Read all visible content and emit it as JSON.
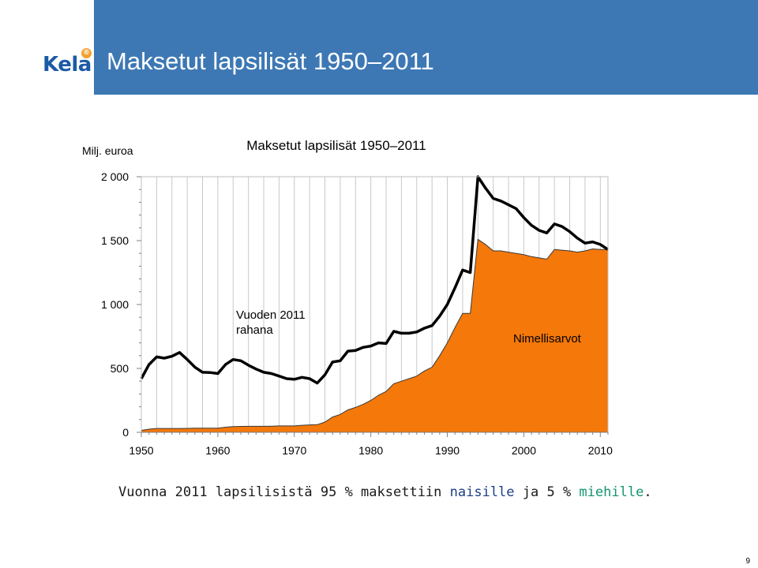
{
  "header": {
    "title": "Maksetut lapsilisät 1950–2011",
    "logo_text": "Kela",
    "logo_badge": "®"
  },
  "chart_data": {
    "type": "area",
    "title": "Maksetut lapsilisät 1950–2011",
    "ylabel": "Milj. euroa",
    "xlim": [
      1950,
      2011
    ],
    "ylim": [
      0,
      2000
    ],
    "x_ticks": [
      "1950",
      "1960",
      "1970",
      "1980",
      "1990",
      "2000",
      "2010"
    ],
    "y_ticks": [
      "0",
      "500",
      "1 000",
      "1 500",
      "2 000"
    ],
    "grid": "vertical",
    "annotations": [
      {
        "lines": [
          "Vuoden 2011",
          "rahana"
        ]
      },
      {
        "lines": [
          "Nimellisarvot"
        ]
      }
    ],
    "series": [
      {
        "name": "Vuoden 2011 rahana",
        "style": "line",
        "color": "#000000",
        "x": [
          1950,
          1951,
          1952,
          1953,
          1954,
          1955,
          1956,
          1957,
          1958,
          1959,
          1960,
          1961,
          1962,
          1963,
          1964,
          1965,
          1966,
          1967,
          1968,
          1969,
          1970,
          1971,
          1972,
          1973,
          1974,
          1975,
          1976,
          1977,
          1978,
          1979,
          1980,
          1981,
          1982,
          1983,
          1984,
          1985,
          1986,
          1987,
          1988,
          1989,
          1990,
          1991,
          1992,
          1993,
          1994,
          1995,
          1996,
          1997,
          1998,
          1999,
          2000,
          2001,
          2002,
          2003,
          2004,
          2005,
          2006,
          2007,
          2008,
          2009,
          2010,
          2011
        ],
        "values": [
          420,
          530,
          590,
          580,
          595,
          625,
          570,
          510,
          470,
          468,
          460,
          530,
          570,
          560,
          525,
          495,
          470,
          460,
          440,
          420,
          415,
          430,
          420,
          385,
          450,
          550,
          560,
          635,
          640,
          665,
          675,
          700,
          695,
          790,
          775,
          775,
          785,
          815,
          835,
          910,
          1000,
          1130,
          1270,
          1250,
          2000,
          1910,
          1830,
          1810,
          1780,
          1750,
          1680,
          1620,
          1580,
          1560,
          1630,
          1610,
          1570,
          1520,
          1480,
          1490,
          1470,
          1430
        ]
      },
      {
        "name": "Nimellisarvot",
        "style": "area",
        "color": "#f4780a",
        "x": [
          1950,
          1951,
          1952,
          1953,
          1954,
          1955,
          1956,
          1957,
          1958,
          1959,
          1960,
          1961,
          1962,
          1963,
          1964,
          1965,
          1966,
          1967,
          1968,
          1969,
          1970,
          1971,
          1972,
          1973,
          1974,
          1975,
          1976,
          1977,
          1978,
          1979,
          1980,
          1981,
          1982,
          1983,
          1984,
          1985,
          1986,
          1987,
          1988,
          1989,
          1990,
          1991,
          1992,
          1993,
          1994,
          1995,
          1996,
          1997,
          1998,
          1999,
          2000,
          2001,
          2002,
          2003,
          2004,
          2005,
          2006,
          2007,
          2008,
          2009,
          2010,
          2011
        ],
        "values": [
          15,
          25,
          30,
          30,
          30,
          30,
          31,
          32,
          33,
          33,
          33,
          40,
          45,
          46,
          47,
          47,
          47,
          48,
          50,
          50,
          50,
          55,
          58,
          60,
          80,
          120,
          140,
          175,
          195,
          220,
          250,
          290,
          320,
          380,
          400,
          420,
          440,
          480,
          510,
          600,
          700,
          820,
          930,
          930,
          1510,
          1470,
          1420,
          1420,
          1410,
          1400,
          1390,
          1375,
          1365,
          1355,
          1430,
          1425,
          1420,
          1410,
          1420,
          1435,
          1430,
          1430
        ]
      }
    ]
  },
  "caption": {
    "part1": "Vuonna 2011 lapsilisistä 95 % maksettiin ",
    "naisille": "naisille",
    "part2": " ja 5 % ",
    "miehille": "miehille",
    "part3": "."
  },
  "page_number": "9"
}
